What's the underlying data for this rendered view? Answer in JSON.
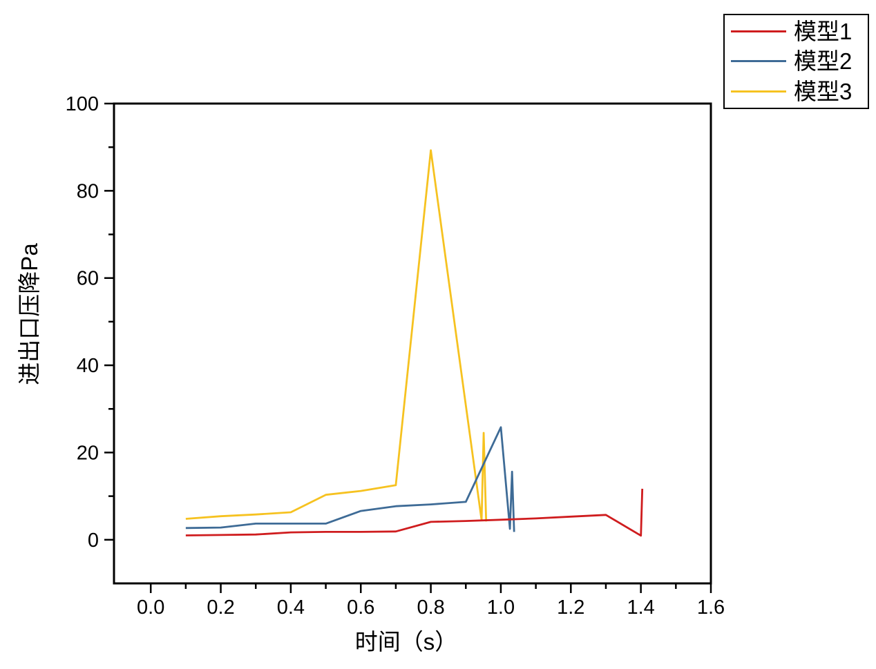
{
  "chart_data": {
    "type": "line",
    "title": "",
    "xlabel": "时间（s）",
    "ylabel": "进出口压降Pa",
    "xlim": [
      -0.105,
      1.6
    ],
    "ylim": [
      -10,
      100
    ],
    "grid": false,
    "frame": "box",
    "legend_position": "outside-top-right",
    "axis_color": "#000000",
    "x_ticks": {
      "values": [
        0.0,
        0.2,
        0.4,
        0.6,
        0.8,
        1.0,
        1.2,
        1.4,
        1.6
      ],
      "labels": [
        "0.0",
        "0.2",
        "0.4",
        "0.6",
        "0.8",
        "1.0",
        "1.2",
        "1.4",
        "1.6"
      ],
      "minor": [
        0.1,
        0.3,
        0.5,
        0.7,
        0.9,
        1.1,
        1.3,
        1.5
      ]
    },
    "y_ticks": {
      "values": [
        0,
        20,
        40,
        60,
        80,
        100
      ],
      "labels": [
        "0",
        "20",
        "40",
        "60",
        "80",
        "100"
      ],
      "minor": [
        10,
        30,
        50,
        70,
        90
      ]
    },
    "series": [
      {
        "name": "模型1",
        "color": "#cf1c1e",
        "points": [
          [
            0.1,
            1.0
          ],
          [
            0.2,
            1.1
          ],
          [
            0.3,
            1.2
          ],
          [
            0.4,
            1.7
          ],
          [
            0.5,
            1.8
          ],
          [
            0.6,
            1.8
          ],
          [
            0.7,
            1.9
          ],
          [
            0.8,
            4.1
          ],
          [
            0.9,
            4.3
          ],
          [
            1.0,
            4.6
          ],
          [
            1.1,
            4.9
          ],
          [
            1.2,
            5.3
          ],
          [
            1.3,
            5.7
          ],
          [
            1.4,
            0.95
          ],
          [
            1.404,
            11.7
          ]
        ]
      },
      {
        "name": "模型2",
        "color": "#3e6b96",
        "points": [
          [
            0.1,
            2.7
          ],
          [
            0.2,
            2.8
          ],
          [
            0.3,
            3.7
          ],
          [
            0.4,
            3.7
          ],
          [
            0.5,
            3.7
          ],
          [
            0.6,
            6.6
          ],
          [
            0.7,
            7.7
          ],
          [
            0.8,
            8.1
          ],
          [
            0.9,
            8.7
          ],
          [
            1.0,
            25.8
          ],
          [
            1.026,
            2.5
          ],
          [
            1.032,
            15.6
          ],
          [
            1.038,
            1.8
          ]
        ]
      },
      {
        "name": "模型3",
        "color": "#f6c220",
        "points": [
          [
            0.1,
            4.8
          ],
          [
            0.2,
            5.4
          ],
          [
            0.3,
            5.8
          ],
          [
            0.4,
            6.3
          ],
          [
            0.5,
            10.3
          ],
          [
            0.6,
            11.2
          ],
          [
            0.7,
            12.5
          ],
          [
            0.8,
            89.3
          ],
          [
            0.945,
            4.5
          ],
          [
            0.951,
            24.5
          ],
          [
            0.958,
            4.2
          ]
        ]
      }
    ]
  }
}
